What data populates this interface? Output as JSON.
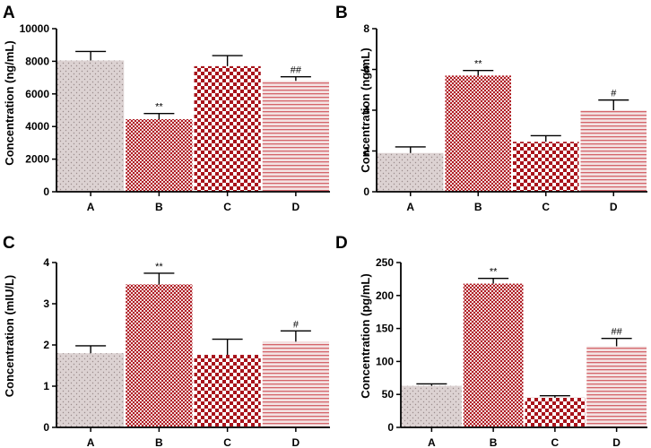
{
  "chart_data": [
    {
      "type": "bar",
      "panel": "A",
      "ylabel": "Concentration (ng/mL)",
      "categories": [
        "A",
        "B",
        "C",
        "D"
      ],
      "values": [
        8050,
        4450,
        7700,
        6800
      ],
      "errors": [
        550,
        350,
        650,
        250
      ],
      "annotations": [
        "",
        "**",
        "",
        "##"
      ],
      "ylim": [
        0,
        10000
      ],
      "yticks": [
        0,
        2000,
        4000,
        6000,
        8000,
        10000
      ],
      "patterns": [
        "dots",
        "fine-check",
        "check",
        "stripes"
      ]
    },
    {
      "type": "bar",
      "panel": "B",
      "ylabel": "Concentration (ng/mL)",
      "categories": [
        "A",
        "B",
        "C",
        "D"
      ],
      "values": [
        1.9,
        5.7,
        2.45,
        4.0
      ],
      "errors": [
        0.3,
        0.25,
        0.3,
        0.5
      ],
      "annotations": [
        "",
        "**",
        "",
        "#"
      ],
      "ylim": [
        0,
        8
      ],
      "yticks": [
        0,
        2,
        4,
        6,
        8
      ],
      "patterns": [
        "dots",
        "fine-check",
        "check",
        "stripes"
      ]
    },
    {
      "type": "bar",
      "panel": "C",
      "ylabel": "Concentration (mIU/L)",
      "categories": [
        "A",
        "B",
        "C",
        "D"
      ],
      "values": [
        1.8,
        3.47,
        1.76,
        2.08
      ],
      "errors": [
        0.18,
        0.27,
        0.38,
        0.26
      ],
      "annotations": [
        "",
        "**",
        "",
        "#"
      ],
      "ylim": [
        0,
        4
      ],
      "yticks": [
        0,
        1,
        2,
        3,
        4
      ],
      "patterns": [
        "dots",
        "fine-check",
        "check",
        "stripes"
      ]
    },
    {
      "type": "bar",
      "panel": "D",
      "ylabel": "Concentration (pg/mL)",
      "categories": [
        "A",
        "B",
        "C",
        "D"
      ],
      "values": [
        63,
        218,
        45,
        123
      ],
      "errors": [
        3,
        8,
        3,
        12
      ],
      "annotations": [
        "",
        "**",
        "",
        "##"
      ],
      "ylim": [
        0,
        250
      ],
      "yticks": [
        0,
        50,
        100,
        150,
        200,
        250
      ],
      "patterns": [
        "dots",
        "fine-check",
        "check",
        "stripes"
      ]
    }
  ]
}
